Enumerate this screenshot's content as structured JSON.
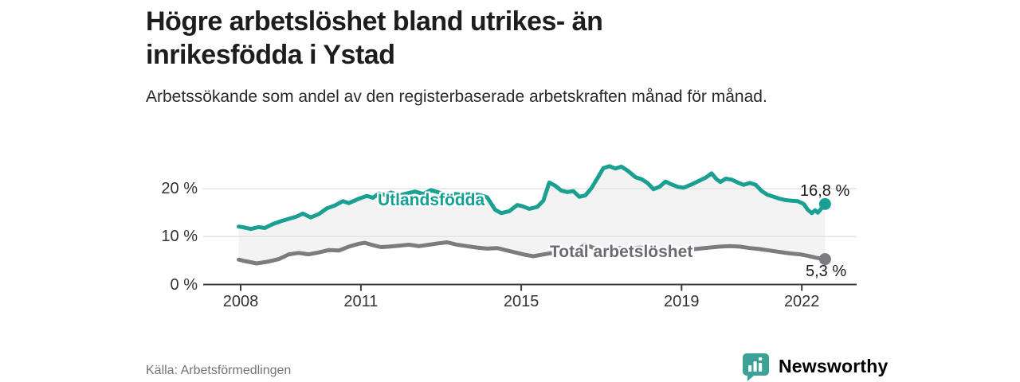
{
  "header": {
    "title": "Högre arbetslöshet bland utrikes- än inrikesfödda i Ystad",
    "subtitle": "Arbetssökande som andel av den registerbaserade arbetskraften månad för månad."
  },
  "footer": {
    "source": "Källa: Arbetsförmedlingen",
    "brand_name": "Newsworthy",
    "brand_color": "#3da197"
  },
  "colors": {
    "accent_teal": "#1aa092",
    "line_gray": "#7c7c80",
    "band_fill": "#f3f3f3",
    "gridline": "#e3e3e3",
    "axis": "#3c3c3c",
    "tick_text": "#333333"
  },
  "chart_data": {
    "type": "line",
    "title": "Högre arbetslöshet bland utrikes- än inrikesfödda i Ystad",
    "subtitle": "Arbetssökande som andel av den registerbaserade arbetskraften månad för månad.",
    "source": "Källa: Arbetsförmedlingen",
    "unit": "%",
    "grid": true,
    "x_axis": {
      "ticks": [
        2008,
        2011,
        2015,
        2019,
        2022
      ],
      "range": [
        2007.05,
        2023.35
      ]
    },
    "y_axis": {
      "ticks": [
        0,
        10,
        20
      ],
      "tick_suffix": " %",
      "range": [
        0,
        27
      ]
    },
    "band_between_series": true,
    "series": [
      {
        "name": "Utlandsfödda",
        "color": "#1aa092",
        "end_label": "16,8 %",
        "end_value": 16.8,
        "points": [
          [
            2007.95,
            12.1
          ],
          [
            2008.1,
            11.9
          ],
          [
            2008.25,
            11.6
          ],
          [
            2008.45,
            12.0
          ],
          [
            2008.6,
            11.8
          ],
          [
            2008.8,
            12.6
          ],
          [
            2009.0,
            13.2
          ],
          [
            2009.2,
            13.7
          ],
          [
            2009.4,
            14.2
          ],
          [
            2009.55,
            14.8
          ],
          [
            2009.75,
            14.0
          ],
          [
            2009.95,
            14.7
          ],
          [
            2010.15,
            15.9
          ],
          [
            2010.35,
            16.5
          ],
          [
            2010.55,
            17.4
          ],
          [
            2010.7,
            17.0
          ],
          [
            2010.95,
            17.9
          ],
          [
            2011.15,
            18.5
          ],
          [
            2011.3,
            18.1
          ],
          [
            2011.45,
            19.0
          ],
          [
            2011.6,
            18.7
          ],
          [
            2011.75,
            19.2
          ],
          [
            2011.95,
            18.6
          ],
          [
            2012.15,
            19.0
          ],
          [
            2012.35,
            19.4
          ],
          [
            2012.55,
            18.9
          ],
          [
            2012.75,
            19.7
          ],
          [
            2012.95,
            19.2
          ],
          [
            2013.15,
            18.7
          ],
          [
            2013.35,
            18.9
          ],
          [
            2013.55,
            18.7
          ],
          [
            2013.75,
            18.9
          ],
          [
            2013.95,
            18.7
          ],
          [
            2014.15,
            18.2
          ],
          [
            2014.35,
            15.6
          ],
          [
            2014.5,
            14.9
          ],
          [
            2014.7,
            15.3
          ],
          [
            2014.9,
            16.6
          ],
          [
            2015.05,
            16.3
          ],
          [
            2015.2,
            15.8
          ],
          [
            2015.4,
            16.2
          ],
          [
            2015.55,
            17.5
          ],
          [
            2015.7,
            21.3
          ],
          [
            2015.85,
            20.6
          ],
          [
            2016.0,
            19.6
          ],
          [
            2016.15,
            19.3
          ],
          [
            2016.3,
            19.5
          ],
          [
            2016.45,
            18.3
          ],
          [
            2016.6,
            18.6
          ],
          [
            2016.75,
            20.1
          ],
          [
            2016.9,
            22.2
          ],
          [
            2017.05,
            24.3
          ],
          [
            2017.2,
            24.7
          ],
          [
            2017.35,
            24.2
          ],
          [
            2017.5,
            24.6
          ],
          [
            2017.65,
            23.8
          ],
          [
            2017.85,
            22.4
          ],
          [
            2018.0,
            22.0
          ],
          [
            2018.15,
            21.2
          ],
          [
            2018.3,
            19.9
          ],
          [
            2018.45,
            20.4
          ],
          [
            2018.6,
            21.5
          ],
          [
            2018.75,
            20.9
          ],
          [
            2018.9,
            20.4
          ],
          [
            2019.05,
            20.2
          ],
          [
            2019.25,
            20.9
          ],
          [
            2019.45,
            21.7
          ],
          [
            2019.6,
            22.3
          ],
          [
            2019.75,
            23.2
          ],
          [
            2019.87,
            22.0
          ],
          [
            2019.97,
            21.4
          ],
          [
            2020.1,
            22.1
          ],
          [
            2020.25,
            21.9
          ],
          [
            2020.4,
            21.3
          ],
          [
            2020.55,
            20.8
          ],
          [
            2020.7,
            21.2
          ],
          [
            2020.85,
            20.8
          ],
          [
            2021.0,
            19.5
          ],
          [
            2021.15,
            18.7
          ],
          [
            2021.3,
            18.3
          ],
          [
            2021.45,
            17.9
          ],
          [
            2021.6,
            17.6
          ],
          [
            2021.75,
            17.5
          ],
          [
            2021.9,
            17.4
          ],
          [
            2022.05,
            16.8
          ],
          [
            2022.15,
            15.6
          ],
          [
            2022.25,
            14.9
          ],
          [
            2022.33,
            15.5
          ],
          [
            2022.4,
            15.0
          ],
          [
            2022.58,
            16.8
          ]
        ]
      },
      {
        "name": "Total arbetslöshet",
        "color": "#7c7c80",
        "end_label": "5,3 %",
        "end_value": 5.3,
        "points": [
          [
            2007.95,
            5.2
          ],
          [
            2008.1,
            4.9
          ],
          [
            2008.4,
            4.4
          ],
          [
            2008.7,
            4.8
          ],
          [
            2008.95,
            5.3
          ],
          [
            2009.2,
            6.3
          ],
          [
            2009.45,
            6.6
          ],
          [
            2009.7,
            6.3
          ],
          [
            2009.95,
            6.7
          ],
          [
            2010.2,
            7.2
          ],
          [
            2010.45,
            7.1
          ],
          [
            2010.7,
            7.9
          ],
          [
            2010.95,
            8.5
          ],
          [
            2011.1,
            8.7
          ],
          [
            2011.3,
            8.2
          ],
          [
            2011.5,
            7.8
          ],
          [
            2011.7,
            7.9
          ],
          [
            2011.95,
            8.1
          ],
          [
            2012.2,
            8.3
          ],
          [
            2012.45,
            8.0
          ],
          [
            2012.7,
            8.3
          ],
          [
            2012.95,
            8.6
          ],
          [
            2013.15,
            8.8
          ],
          [
            2013.4,
            8.3
          ],
          [
            2013.65,
            8.0
          ],
          [
            2013.9,
            7.7
          ],
          [
            2014.15,
            7.5
          ],
          [
            2014.4,
            7.6
          ],
          [
            2014.65,
            7.1
          ],
          [
            2014.9,
            6.6
          ],
          [
            2015.1,
            6.2
          ],
          [
            2015.3,
            5.9
          ],
          [
            2015.5,
            6.2
          ],
          [
            2015.7,
            6.5
          ],
          [
            2015.95,
            6.6
          ],
          [
            2016.2,
            6.9
          ],
          [
            2016.45,
            7.5
          ],
          [
            2016.6,
            8.3
          ],
          [
            2016.75,
            7.8
          ],
          [
            2016.95,
            7.3
          ],
          [
            2017.2,
            7.4
          ],
          [
            2017.45,
            7.6
          ],
          [
            2017.7,
            7.5
          ],
          [
            2017.95,
            7.7
          ],
          [
            2018.2,
            7.5
          ],
          [
            2018.45,
            7.4
          ],
          [
            2018.7,
            7.3
          ],
          [
            2018.95,
            7.2
          ],
          [
            2019.2,
            7.3
          ],
          [
            2019.45,
            7.5
          ],
          [
            2019.7,
            7.7
          ],
          [
            2019.95,
            7.9
          ],
          [
            2020.2,
            8.0
          ],
          [
            2020.45,
            7.9
          ],
          [
            2020.7,
            7.6
          ],
          [
            2020.95,
            7.4
          ],
          [
            2021.2,
            7.1
          ],
          [
            2021.45,
            6.8
          ],
          [
            2021.7,
            6.5
          ],
          [
            2021.95,
            6.3
          ],
          [
            2022.15,
            6.0
          ],
          [
            2022.35,
            5.6
          ],
          [
            2022.58,
            5.3
          ]
        ]
      }
    ]
  }
}
